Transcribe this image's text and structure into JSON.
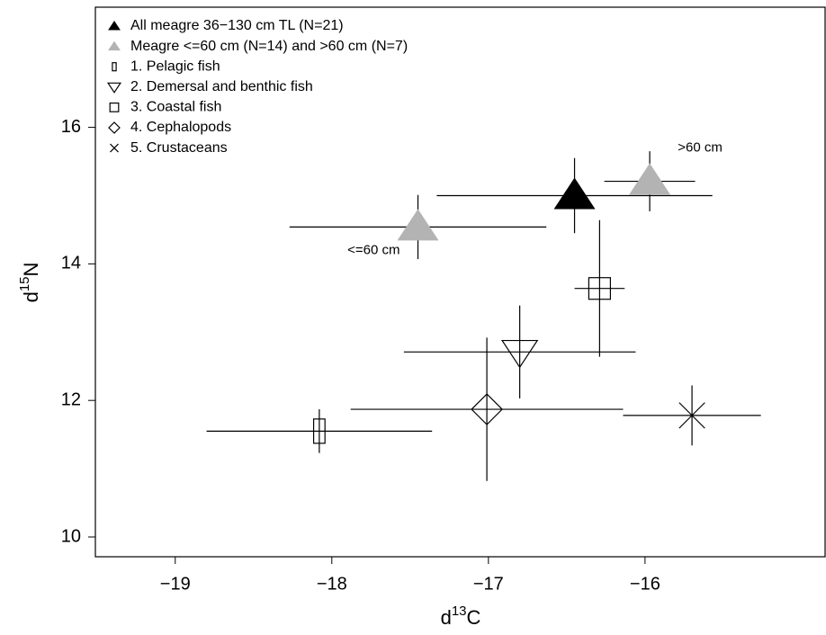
{
  "chart_data": {
    "type": "scatter",
    "xlabel": [
      "d",
      "13",
      "C"
    ],
    "ylabel": [
      "d",
      "15",
      "N"
    ],
    "xlim": [
      -19.51,
      -14.85
    ],
    "ylim": [
      9.71,
      17.76
    ],
    "xticks": [
      {
        "value": -19,
        "label": "−19"
      },
      {
        "value": -18,
        "label": "−18"
      },
      {
        "value": -17,
        "label": "−17"
      },
      {
        "value": -16,
        "label": "−16"
      }
    ],
    "yticks": [
      10,
      12,
      14,
      16
    ],
    "legend": "top-left",
    "series": [
      {
        "name": "All meagre 36−130 cm TL (N=21)",
        "color": "#000000",
        "marker": "triangle-filled",
        "x": [
          -16.45
        ],
        "values": [
          15.0
        ],
        "xerr": [
          0.88
        ],
        "yerr": [
          0.55
        ]
      },
      {
        "name": "Meagre <=60 cm (N=14) and >60 cm (N=7)",
        "color": "#b3b3b3",
        "marker": "triangle-filled",
        "x": [
          -17.45,
          -15.97
        ],
        "values": [
          14.54,
          15.21
        ],
        "xerr": [
          0.82,
          0.29
        ],
        "yerr": [
          0.47,
          0.44
        ],
        "point_labels": [
          "<=60 cm",
          ">60 cm"
        ]
      },
      {
        "name": "1. Pelagic fish",
        "color": "#000000",
        "marker": "rect-narrow",
        "x": [
          -18.08
        ],
        "values": [
          11.55
        ],
        "xerr": [
          0.72
        ],
        "yerr": [
          0.32
        ]
      },
      {
        "name": "2. Demersal and benthic fish",
        "color": "#000000",
        "marker": "triangle-down",
        "x": [
          -16.8
        ],
        "values": [
          12.71
        ],
        "xerr": [
          0.74
        ],
        "yerr": [
          0.68
        ]
      },
      {
        "name": "3. Coastal fish",
        "color": "#000000",
        "marker": "square",
        "x": [
          -16.29
        ],
        "values": [
          13.64
        ],
        "xerr": [
          0.16
        ],
        "yerr": [
          1.0
        ]
      },
      {
        "name": "4. Cephalopods",
        "color": "#000000",
        "marker": "diamond",
        "x": [
          -17.01
        ],
        "values": [
          11.87
        ],
        "xerr": [
          0.87
        ],
        "yerr": [
          1.05
        ]
      },
      {
        "name": "5. Crustaceans",
        "color": "#000000",
        "marker": "x",
        "x": [
          -15.7
        ],
        "values": [
          11.78
        ],
        "xerr": [
          0.44
        ],
        "yerr": [
          0.44
        ]
      }
    ]
  }
}
